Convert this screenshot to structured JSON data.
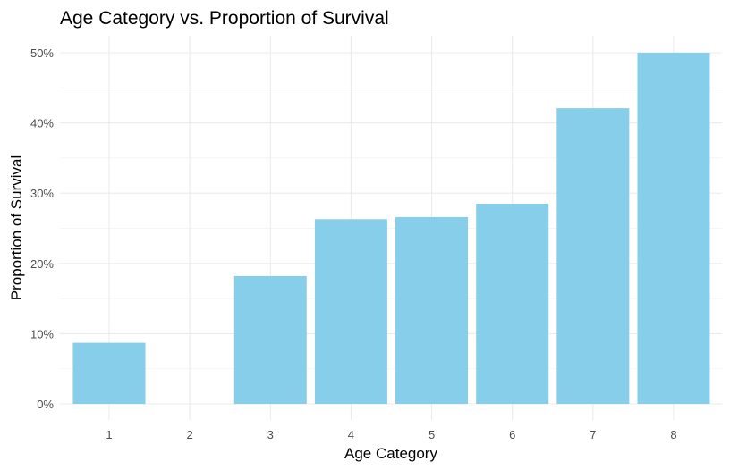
{
  "chart_data": {
    "type": "bar",
    "title": "Age Category vs. Proportion of Survival",
    "xlabel": "Age Category",
    "ylabel": "Proportion of Survival",
    "categories": [
      "1",
      "2",
      "3",
      "4",
      "5",
      "6",
      "7",
      "8"
    ],
    "values": [
      0.087,
      0.0,
      0.182,
      0.263,
      0.266,
      0.285,
      0.421,
      0.5
    ],
    "ylim": [
      0,
      0.5
    ],
    "y_ticks": [
      0,
      0.1,
      0.2,
      0.3,
      0.4,
      0.5
    ],
    "y_tick_labels": [
      "0%",
      "10%",
      "20%",
      "30%",
      "40%",
      "50%"
    ],
    "bar_color": "#87CEEB",
    "grid": true,
    "legend": "none"
  }
}
